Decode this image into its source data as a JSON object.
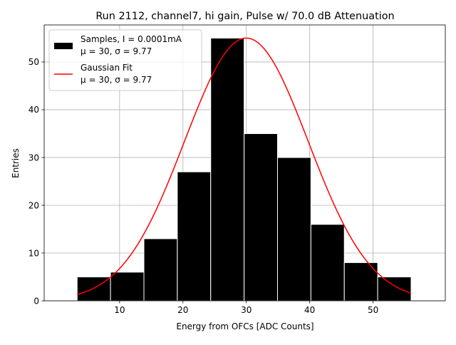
{
  "chart_data": {
    "type": "bar",
    "title": "Run 2112, channel7, hi gain, Pulse w/ 70.0 dB Attenuation",
    "xlabel": "Energy from OFCs [ADC Counts]",
    "ylabel": "Entries",
    "xlim": [
      -1.9,
      61.4
    ],
    "ylim": [
      0,
      57.75
    ],
    "xticks": [
      10,
      20,
      30,
      40,
      50
    ],
    "yticks": [
      0,
      10,
      20,
      30,
      40,
      50
    ],
    "grid": true,
    "legend_position": "top-left",
    "histogram": {
      "name": "Samples, I = 0.0001mA",
      "stats": "μ = 30, σ = 9.77",
      "color": "#000000",
      "edge_color": "#ffffff",
      "bin_edges": [
        3.3,
        8.57,
        13.84,
        19.11,
        24.38,
        29.65,
        34.92,
        40.19,
        45.46,
        50.73,
        56.0
      ],
      "counts": [
        5,
        6,
        13,
        27,
        55,
        35,
        30,
        16,
        8,
        5
      ]
    },
    "fit": {
      "name": "Gaussian Fit",
      "stats": "μ = 30, σ = 9.77",
      "type": "gaussian",
      "mu": 30,
      "sigma": 9.77,
      "amplitude": 55,
      "x_range": [
        3.3,
        56.0
      ],
      "color": "#ff0000"
    }
  }
}
